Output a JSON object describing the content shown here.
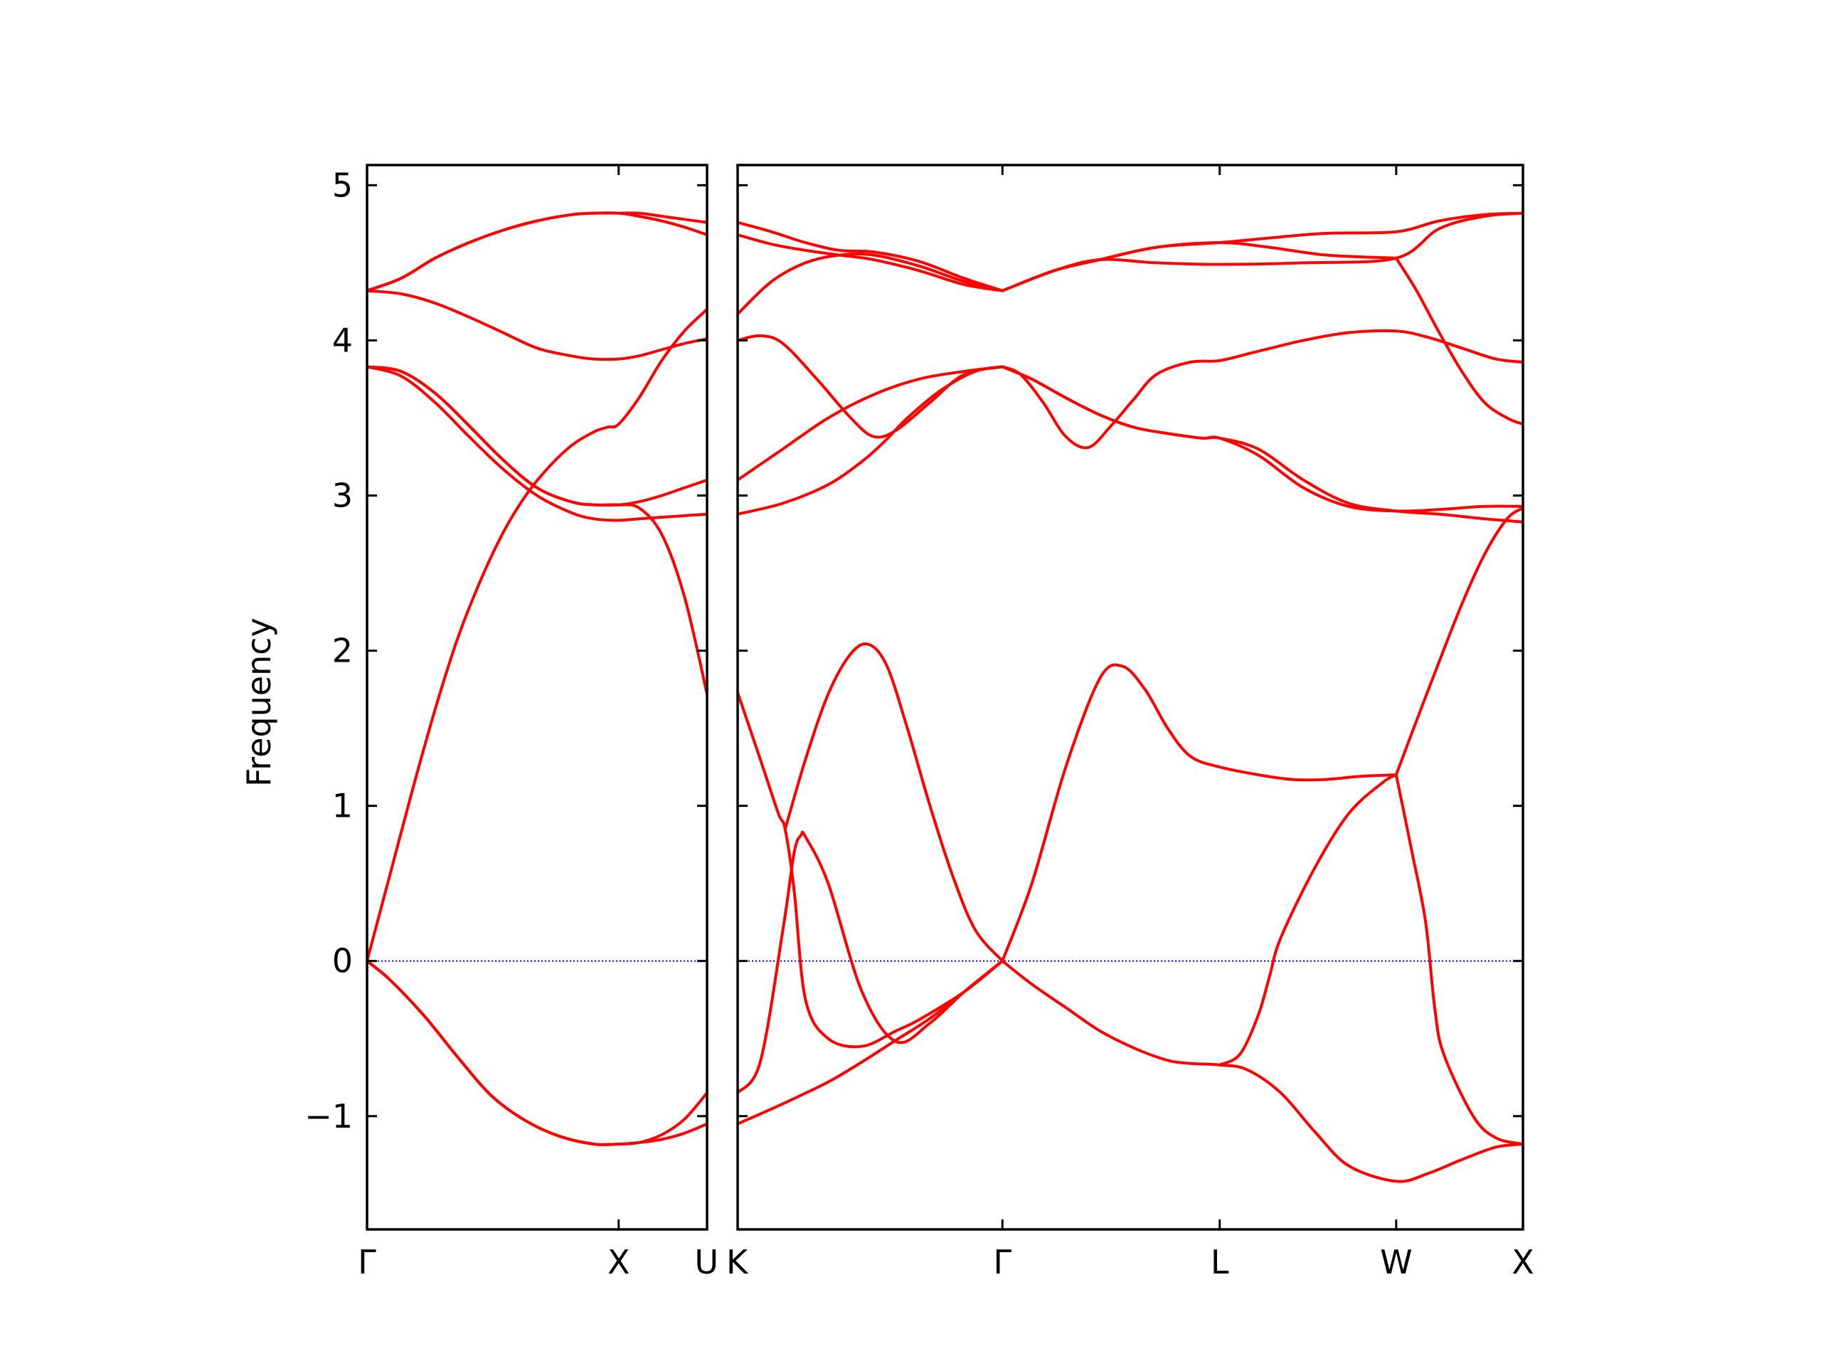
{
  "chart_data": {
    "type": "line",
    "ylabel": "Frequency",
    "ylim": [
      -1.73,
      5.13
    ],
    "yticks": [
      {
        "value": -1,
        "label": "−1"
      },
      {
        "value": 0,
        "label": "0"
      },
      {
        "value": 1,
        "label": "1"
      },
      {
        "value": 2,
        "label": "2"
      },
      {
        "value": 3,
        "label": "3"
      },
      {
        "value": 4,
        "label": "4"
      },
      {
        "value": 5,
        "label": "5"
      }
    ],
    "zero_line": {
      "value": 0,
      "color": "#0000ff",
      "style": "dotted"
    },
    "series_color": "#ff0000",
    "grid": false,
    "panels": [
      {
        "xlim": [
          0,
          1.5
        ],
        "xticks": [
          {
            "value": 0,
            "label": "Γ"
          },
          {
            "value": 1.11,
            "label": "X"
          },
          {
            "value": 1.5,
            "label": "U"
          }
        ],
        "branches": [
          {
            "x": [
              0,
              0.1,
              0.25,
              0.4,
              0.55,
              0.7,
              0.85,
              1.0,
              1.11,
              1.2,
              1.3,
              1.4,
              1.5
            ],
            "y": [
              0,
              -0.12,
              -0.35,
              -0.62,
              -0.87,
              -1.03,
              -1.13,
              -1.18,
              -1.18,
              -1.17,
              -1.15,
              -1.11,
              -1.05
            ]
          },
          {
            "x": [
              0,
              0.1,
              0.25,
              0.4,
              0.55,
              0.7,
              0.85,
              1.0,
              1.11,
              1.2,
              1.3,
              1.4,
              1.5
            ],
            "y": [
              0,
              -0.12,
              -0.35,
              -0.62,
              -0.87,
              -1.03,
              -1.13,
              -1.18,
              -1.18,
              -1.17,
              -1.12,
              -1.02,
              -0.85
            ]
          },
          {
            "x": [
              0,
              0.1,
              0.2,
              0.3,
              0.4,
              0.5,
              0.6,
              0.7,
              0.8,
              0.9,
              1.0,
              1.06,
              1.11,
              1.2,
              1.3,
              1.4,
              1.5
            ],
            "y": [
              0,
              0.55,
              1.1,
              1.62,
              2.08,
              2.45,
              2.76,
              3.0,
              3.18,
              3.32,
              3.41,
              3.44,
              3.46,
              3.63,
              3.87,
              4.06,
              4.2
            ]
          },
          {
            "x": [
              0,
              0.15,
              0.3,
              0.45,
              0.6,
              0.75,
              0.9,
              1.0,
              1.11,
              1.2,
              1.3,
              1.4,
              1.5
            ],
            "y": [
              3.83,
              3.77,
              3.6,
              3.38,
              3.17,
              3.0,
              2.89,
              2.85,
              2.84,
              2.85,
              2.86,
              2.87,
              2.88
            ]
          },
          {
            "x": [
              0,
              0.15,
              0.3,
              0.45,
              0.6,
              0.75,
              0.9,
              1.0,
              1.11,
              1.2,
              1.3,
              1.4,
              1.5
            ],
            "y": [
              3.83,
              3.8,
              3.66,
              3.45,
              3.23,
              3.05,
              2.96,
              2.94,
              2.94,
              2.92,
              2.75,
              2.35,
              1.72
            ]
          },
          {
            "x": [
              0,
              0.15,
              0.3,
              0.45,
              0.6,
              0.75,
              0.9,
              1.0,
              1.11,
              1.2,
              1.3,
              1.4,
              1.5
            ],
            "y": [
              3.83,
              3.8,
              3.66,
              3.45,
              3.23,
              3.05,
              2.96,
              2.94,
              2.94,
              2.96,
              3.0,
              3.05,
              3.1
            ]
          },
          {
            "x": [
              0,
              0.15,
              0.3,
              0.45,
              0.6,
              0.75,
              0.9,
              1.0,
              1.11,
              1.2,
              1.3,
              1.4,
              1.5
            ],
            "y": [
              4.32,
              4.3,
              4.24,
              4.15,
              4.05,
              3.95,
              3.9,
              3.88,
              3.88,
              3.9,
              3.94,
              3.98,
              4.01
            ]
          },
          {
            "x": [
              0,
              0.15,
              0.3,
              0.45,
              0.6,
              0.75,
              0.9,
              1.0,
              1.11,
              1.2,
              1.3,
              1.4,
              1.5
            ],
            "y": [
              4.32,
              4.4,
              4.53,
              4.63,
              4.71,
              4.77,
              4.81,
              4.82,
              4.82,
              4.8,
              4.77,
              4.73,
              4.68
            ]
          },
          {
            "x": [
              0,
              0.15,
              0.3,
              0.45,
              0.6,
              0.75,
              0.9,
              1.0,
              1.11,
              1.2,
              1.3,
              1.4,
              1.5
            ],
            "y": [
              4.32,
              4.4,
              4.53,
              4.63,
              4.71,
              4.77,
              4.81,
              4.82,
              4.82,
              4.82,
              4.8,
              4.78,
              4.76
            ]
          }
        ]
      },
      {
        "xlim": [
          0,
          3.47
        ],
        "xticks": [
          {
            "value": 0,
            "label": "K"
          },
          {
            "value": 1.17,
            "label": "Γ"
          },
          {
            "value": 2.13,
            "label": "L"
          },
          {
            "value": 2.91,
            "label": "W"
          },
          {
            "value": 3.47,
            "label": "X"
          }
        ],
        "branches": [
          {
            "x": [
              0,
              0.2,
              0.4,
              0.55,
              0.7,
              0.85,
              1.0,
              1.17
            ],
            "y": [
              -1.05,
              -0.92,
              -0.78,
              -0.65,
              -0.51,
              -0.37,
              -0.2,
              0
            ]
          },
          {
            "x": [
              0,
              0.1,
              0.2,
              0.25,
              0.28,
              0.3,
              0.4,
              0.55,
              0.7,
              0.85,
              1.0,
              1.17
            ],
            "y": [
              -0.85,
              -0.65,
              0.2,
              0.7,
              0.81,
              0.8,
              0.5,
              -0.2,
              -0.52,
              -0.4,
              -0.2,
              0
            ]
          },
          {
            "x": [
              0,
              0.1,
              0.18,
              0.21,
              0.25,
              0.3,
              0.4,
              0.55,
              0.7,
              0.8,
              1.0,
              1.17
            ],
            "y": [
              1.73,
              1.3,
              0.95,
              0.85,
              0.45,
              -0.25,
              -0.5,
              -0.55,
              -0.45,
              -0.38,
              -0.2,
              0
            ]
          },
          {
            "x": [
              0.21,
              0.3,
              0.4,
              0.5,
              0.58,
              0.66,
              0.75,
              0.85,
              0.95,
              1.05,
              1.17
            ],
            "y": [
              0.85,
              1.3,
              1.72,
              1.98,
              2.04,
              1.9,
              1.5,
              1.0,
              0.55,
              0.2,
              0
            ]
          },
          {
            "x": [
              1.17,
              1.3,
              1.45,
              1.6,
              1.75,
              1.9,
              2.0,
              2.13,
              2.25,
              2.4,
              2.55,
              2.7,
              2.91,
              3.05,
              3.2,
              3.35,
              3.47
            ],
            "y": [
              0,
              -0.15,
              -0.3,
              -0.45,
              -0.56,
              -0.64,
              -0.66,
              -0.67,
              -0.7,
              -0.85,
              -1.1,
              -1.32,
              -1.42,
              -1.37,
              -1.28,
              -1.2,
              -1.18
            ]
          },
          {
            "x": [
              1.17,
              1.3,
              1.45,
              1.6,
              1.7,
              1.8,
              1.9,
              2.0,
              2.13,
              2.3,
              2.45,
              2.6,
              2.75,
              2.91
            ],
            "y": [
              0,
              0.5,
              1.25,
              1.82,
              1.9,
              1.75,
              1.5,
              1.32,
              1.25,
              1.2,
              1.17,
              1.17,
              1.19,
              1.2
            ]
          },
          {
            "x": [
              2.13,
              2.22,
              2.3,
              2.35,
              2.4,
              2.55,
              2.7,
              2.85,
              2.91
            ],
            "y": [
              -0.67,
              -0.6,
              -0.35,
              -0.1,
              0.15,
              0.6,
              0.95,
              1.15,
              1.2
            ]
          },
          {
            "x": [
              2.91,
              2.98,
              3.04,
              3.08,
              3.12,
              3.25,
              3.35,
              3.47
            ],
            "y": [
              1.2,
              0.7,
              0.25,
              -0.3,
              -0.6,
              -1.0,
              -1.14,
              -1.18
            ]
          },
          {
            "x": [
              2.91,
              3.0,
              3.1,
              3.2,
              3.3,
              3.4,
              3.47
            ],
            "y": [
              1.2,
              1.55,
              1.93,
              2.3,
              2.62,
              2.85,
              2.92
            ]
          },
          {
            "x": [
              0,
              0.2,
              0.4,
              0.6,
              0.8,
              1.0,
              1.17
            ],
            "y": [
              3.1,
              3.3,
              3.5,
              3.65,
              3.75,
              3.8,
              3.83
            ]
          },
          {
            "x": [
              0,
              0.2,
              0.4,
              0.55,
              0.65,
              0.75,
              0.9,
              1.05,
              1.17
            ],
            "y": [
              2.88,
              2.95,
              3.07,
              3.22,
              3.35,
              3.5,
              3.68,
              3.8,
              3.83
            ]
          },
          {
            "x": [
              0,
              0.1,
              0.2,
              0.35,
              0.5,
              0.6,
              0.7,
              0.85,
              1.0,
              1.17
            ],
            "y": [
              4.0,
              4.03,
              3.98,
              3.75,
              3.5,
              3.38,
              3.42,
              3.6,
              3.78,
              3.83
            ]
          },
          {
            "x": [
              1.17,
              1.3,
              1.45,
              1.6,
              1.75,
              1.9,
              2.05,
              2.13,
              2.3,
              2.5,
              2.7,
              2.91,
              3.1,
              3.3,
              3.47
            ],
            "y": [
              3.83,
              3.75,
              3.63,
              3.52,
              3.44,
              3.4,
              3.37,
              3.37,
              3.3,
              3.1,
              2.95,
              2.9,
              2.88,
              2.85,
              2.83
            ]
          },
          {
            "x": [
              1.17,
              1.3,
              1.45,
              1.6,
              1.75,
              1.9,
              2.05,
              2.13,
              2.3,
              2.5,
              2.7,
              2.91,
              3.1,
              3.3,
              3.47
            ],
            "y": [
              3.83,
              3.75,
              3.63,
              3.52,
              3.44,
              3.4,
              3.37,
              3.37,
              3.26,
              3.05,
              2.93,
              2.9,
              2.91,
              2.93,
              2.93
            ]
          },
          {
            "x": [
              1.17,
              1.25,
              1.35,
              1.45,
              1.55,
              1.65,
              1.75,
              1.85,
              2.0,
              2.13,
              2.3,
              2.5,
              2.7,
              2.91,
              3.05,
              3.2,
              3.35,
              3.47
            ],
            "y": [
              3.83,
              3.78,
              3.6,
              3.38,
              3.31,
              3.45,
              3.62,
              3.78,
              3.86,
              3.87,
              3.93,
              4.0,
              4.05,
              4.06,
              4.02,
              3.95,
              3.88,
              3.86
            ]
          },
          {
            "x": [
              0,
              0.15,
              0.3,
              0.45,
              0.6,
              0.8,
              1.0,
              1.17
            ],
            "y": [
              4.17,
              4.38,
              4.5,
              4.55,
              4.55,
              4.48,
              4.38,
              4.32
            ]
          },
          {
            "x": [
              0,
              0.15,
              0.3,
              0.45,
              0.6,
              0.8,
              1.0,
              1.17
            ],
            "y": [
              4.68,
              4.62,
              4.58,
              4.55,
              4.52,
              4.45,
              4.36,
              4.32
            ]
          },
          {
            "x": [
              0,
              0.15,
              0.3,
              0.45,
              0.6,
              0.8,
              1.0,
              1.17
            ],
            "y": [
              4.76,
              4.7,
              4.63,
              4.58,
              4.57,
              4.51,
              4.4,
              4.32
            ]
          },
          {
            "x": [
              1.17,
              1.4,
              1.6,
              1.85,
              2.13,
              2.5,
              2.91,
              3.1,
              3.3,
              3.47
            ],
            "y": [
              4.32,
              4.45,
              4.52,
              4.5,
              4.49,
              4.5,
              4.53,
              4.72,
              4.8,
              4.82
            ]
          },
          {
            "x": [
              1.17,
              1.4,
              1.6,
              1.85,
              2.13,
              2.35,
              2.6,
              2.91
            ],
            "y": [
              4.32,
              4.45,
              4.52,
              4.6,
              4.63,
              4.6,
              4.55,
              4.53
            ]
          },
          {
            "x": [
              1.17,
              1.4,
              1.6,
              1.85,
              2.13,
              2.35,
              2.6,
              2.91,
              3.1,
              3.3,
              3.47
            ],
            "y": [
              4.32,
              4.45,
              4.52,
              4.6,
              4.63,
              4.66,
              4.69,
              4.7,
              4.77,
              4.81,
              4.82
            ]
          },
          {
            "x": [
              2.91,
              3.0,
              3.1,
              3.2,
              3.3,
              3.4,
              3.47
            ],
            "y": [
              4.53,
              4.32,
              4.05,
              3.8,
              3.6,
              3.5,
              3.46
            ]
          }
        ]
      }
    ]
  }
}
